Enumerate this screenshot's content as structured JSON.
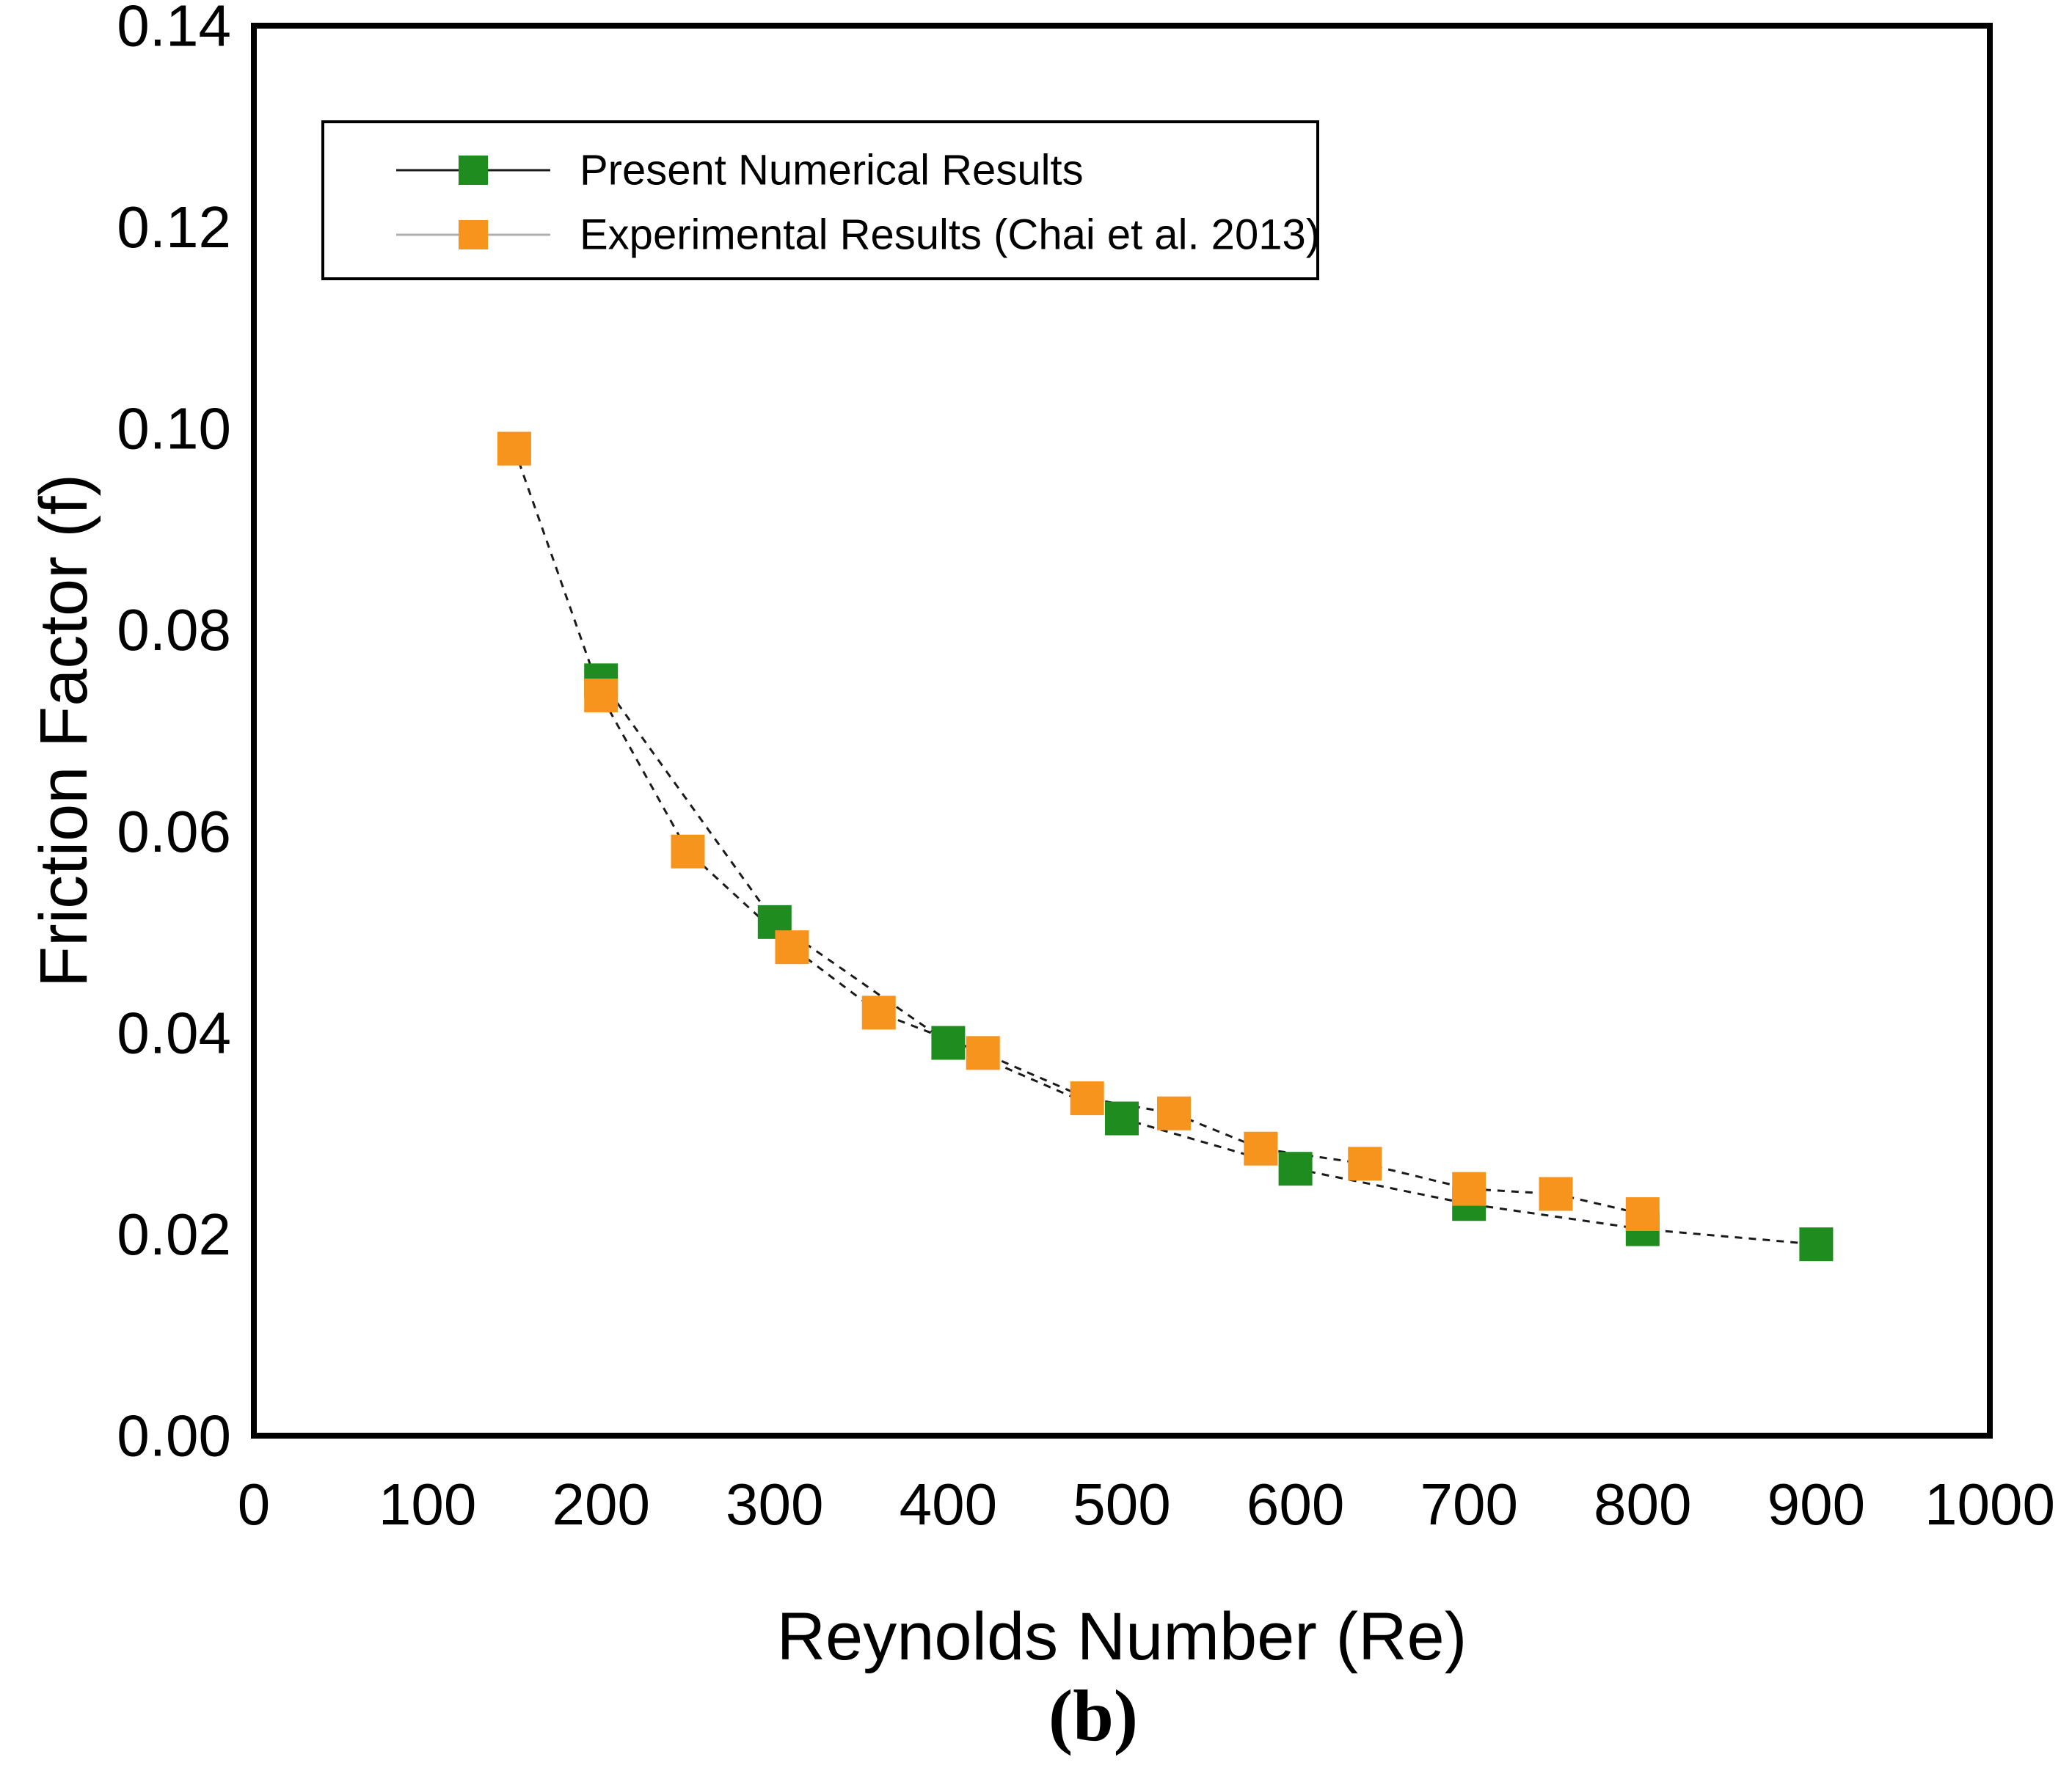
{
  "figure": {
    "caption": "(b)",
    "background": "#ffffff",
    "frame_color": "#000000"
  },
  "chart_data": {
    "type": "scatter",
    "title": "",
    "xlabel": "Reynolds Number (Re)",
    "ylabel": "Friction Factor (f)",
    "xlim": [
      0,
      1000
    ],
    "ylim": [
      0.0,
      0.14
    ],
    "grid": false,
    "legend_position": "top-left-inside",
    "x_tick_values": [
      0,
      100,
      200,
      300,
      400,
      500,
      600,
      700,
      800,
      900,
      1000
    ],
    "x_tick_labels": [
      "0",
      "100",
      "200",
      "300",
      "400",
      "500",
      "600",
      "700",
      "800",
      "900",
      "1000"
    ],
    "y_tick_values": [
      0.0,
      0.02,
      0.04,
      0.06,
      0.08,
      0.1,
      0.12,
      0.14
    ],
    "y_tick_labels": [
      "0.00",
      "0.02",
      "0.04",
      "0.06",
      "0.08",
      "0.10",
      "0.12",
      "0.14"
    ],
    "series": [
      {
        "name": "Present Numerical Results",
        "marker": "square",
        "marker_color": "#1E8C1E",
        "line_color": "#1a1a1a",
        "legend_line_color": "#1a1a1a",
        "line_style": "dashed",
        "x": [
          200,
          300,
          400,
          500,
          600,
          700,
          800,
          900
        ],
        "y": [
          0.075,
          0.051,
          0.039,
          0.0315,
          0.0265,
          0.023,
          0.0205,
          0.019
        ]
      },
      {
        "name": "Experimental Results (Chai et al. 2013)",
        "marker": "square",
        "marker_color": "#F7941D",
        "line_color": "#1a1a1a",
        "legend_line_color": "#b0b0b0",
        "line_style": "dashed",
        "x": [
          150,
          200,
          250,
          310,
          360,
          420,
          480,
          530,
          580,
          640,
          700,
          750,
          800
        ],
        "y": [
          0.098,
          0.0735,
          0.058,
          0.0485,
          0.042,
          0.038,
          0.0335,
          0.032,
          0.0285,
          0.027,
          0.0245,
          0.024,
          0.022
        ]
      }
    ]
  }
}
